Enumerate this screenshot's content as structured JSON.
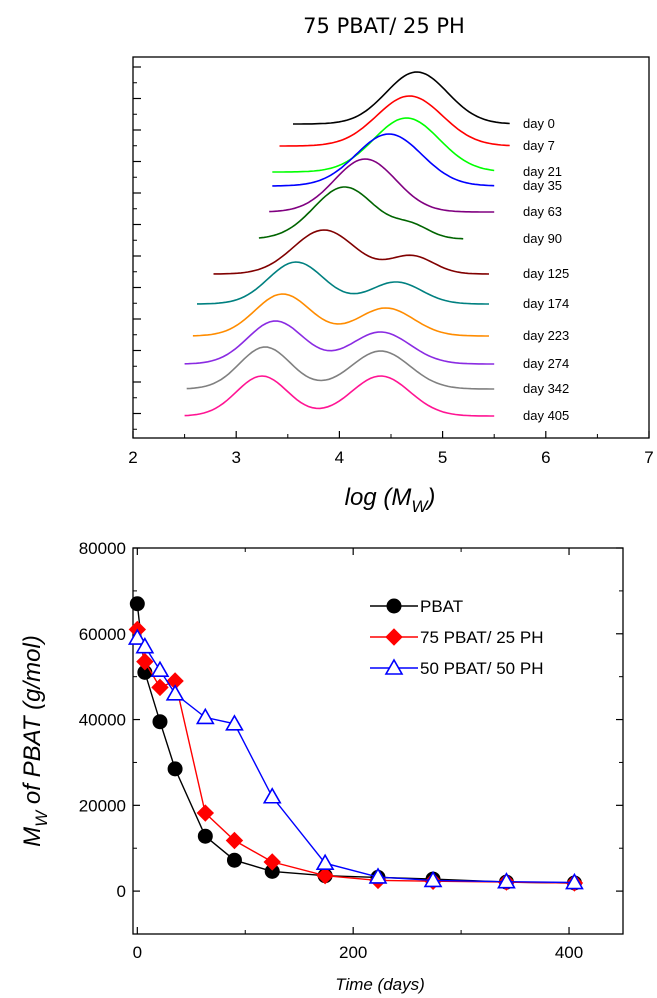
{
  "chart_data": [
    {
      "type": "line",
      "title": "75 PBAT/ 25 PH",
      "xlabel": "log (MW)",
      "xlabel_main": "log (M",
      "xlabel_sub": "W",
      "xlabel_close": ")",
      "ylabel": "",
      "xlim": [
        2,
        7
      ],
      "x_ticks": [
        2,
        3,
        4,
        5,
        6,
        7
      ],
      "y_ticks_shown": false,
      "grid": false,
      "series": [
        {
          "name": "day 0",
          "color": "#000000",
          "start": 3.55,
          "end": 5.65,
          "offset": 0,
          "peaks": [
            {
              "x": 4.75,
              "h": 52,
              "w": 0.42
            }
          ],
          "x": [
            3.55,
            4.75,
            5.65
          ]
        },
        {
          "name": "day 7",
          "color": "#ff0000",
          "start": 3.42,
          "end": 5.65,
          "offset": 22,
          "peaks": [
            {
              "x": 4.68,
              "h": 50,
              "w": 0.45
            }
          ],
          "x": [
            3.42,
            4.68,
            5.65
          ]
        },
        {
          "name": "day 21",
          "color": "#00ff00",
          "start": 3.35,
          "end": 5.5,
          "offset": 48,
          "peaks": [
            {
              "x": 4.65,
              "h": 54,
              "w": 0.45
            }
          ],
          "x": [
            3.35,
            4.65,
            5.5
          ]
        },
        {
          "name": "day 35",
          "color": "#0000ff",
          "start": 3.35,
          "end": 5.5,
          "offset": 62,
          "peaks": [
            {
              "x": 4.48,
              "h": 52,
              "w": 0.45
            }
          ],
          "x": [
            3.35,
            4.48,
            5.5
          ]
        },
        {
          "name": "day 63",
          "color": "#800080",
          "start": 3.32,
          "end": 5.5,
          "offset": 88,
          "peaks": [
            {
              "x": 4.25,
              "h": 53,
              "w": 0.42
            }
          ],
          "x": [
            3.32,
            4.25,
            5.5
          ]
        },
        {
          "name": "day 90",
          "color": "#006400",
          "start": 3.22,
          "end": 5.2,
          "offset": 115,
          "peaks": [
            {
              "x": 4.05,
              "h": 52,
              "w": 0.42
            },
            {
              "x": 4.7,
              "h": 12,
              "w": 0.25
            }
          ],
          "x": [
            3.22,
            4.05,
            5.2
          ]
        },
        {
          "name": "day 125",
          "color": "#800000",
          "start": 2.78,
          "end": 5.45,
          "offset": 150,
          "peaks": [
            {
              "x": 3.85,
              "h": 44,
              "w": 0.42
            },
            {
              "x": 4.7,
              "h": 18,
              "w": 0.3
            }
          ],
          "x": [
            2.78,
            3.85,
            5.45
          ]
        },
        {
          "name": "day 174",
          "color": "#008080",
          "start": 2.62,
          "end": 5.45,
          "offset": 180,
          "peaks": [
            {
              "x": 3.58,
              "h": 42,
              "w": 0.38
            },
            {
              "x": 4.55,
              "h": 22,
              "w": 0.35
            }
          ],
          "x": [
            2.62,
            3.58,
            5.45
          ]
        },
        {
          "name": "day 223",
          "color": "#ff8c00",
          "start": 2.58,
          "end": 5.45,
          "offset": 212,
          "peaks": [
            {
              "x": 3.45,
              "h": 42,
              "w": 0.38
            },
            {
              "x": 4.45,
              "h": 28,
              "w": 0.38
            }
          ],
          "x": [
            2.58,
            3.45,
            5.45
          ]
        },
        {
          "name": "day 274",
          "color": "#8a2be2",
          "start": 2.5,
          "end": 5.5,
          "offset": 240,
          "peaks": [
            {
              "x": 3.38,
              "h": 43,
              "w": 0.38
            },
            {
              "x": 4.4,
              "h": 32,
              "w": 0.4
            }
          ],
          "x": [
            2.5,
            3.38,
            5.5
          ]
        },
        {
          "name": "day 342",
          "color": "#808080",
          "start": 2.52,
          "end": 5.5,
          "offset": 265,
          "peaks": [
            {
              "x": 3.28,
              "h": 42,
              "w": 0.35
            },
            {
              "x": 4.4,
              "h": 38,
              "w": 0.4
            }
          ],
          "x": [
            2.52,
            3.28,
            5.5
          ]
        },
        {
          "name": "day 405",
          "color": "#ff1493",
          "start": 2.5,
          "end": 5.5,
          "offset": 292,
          "peaks": [
            {
              "x": 3.25,
              "h": 40,
              "w": 0.35
            },
            {
              "x": 4.4,
              "h": 40,
              "w": 0.4
            }
          ],
          "x": [
            2.5,
            3.25,
            5.5
          ]
        }
      ]
    },
    {
      "type": "line",
      "title": "",
      "xlabel": "Time (days)",
      "ylabel": "MW of PBAT (g/mol)",
      "ylabel_main": "M",
      "ylabel_sub": "W",
      "ylabel_rest": " of PBAT (g/mol)",
      "xlim": [
        -4,
        450
      ],
      "ylim": [
        -10000,
        80000
      ],
      "x_ticks": [
        0,
        200,
        400
      ],
      "y_ticks": [
        0,
        20000,
        40000,
        60000,
        80000
      ],
      "grid": false,
      "legend_position": "top-right",
      "series": [
        {
          "name": "PBAT",
          "color": "#000000",
          "marker": "circle",
          "x": [
            0,
            7,
            21,
            35,
            63,
            90,
            125,
            174,
            223,
            274,
            342,
            405
          ],
          "y": [
            67000,
            51000,
            39500,
            28500,
            12800,
            7200,
            4600,
            3600,
            3200,
            2800,
            2100,
            1900
          ]
        },
        {
          "name": "75 PBAT/ 25 PH",
          "color": "#ff0000",
          "marker": "diamond",
          "x": [
            0,
            7,
            21,
            35,
            63,
            90,
            125,
            174,
            223,
            274,
            342,
            405
          ],
          "y": [
            61000,
            53500,
            47500,
            49000,
            18200,
            11800,
            6800,
            3600,
            2500,
            2300,
            2100,
            1900
          ]
        },
        {
          "name": "50 PBAT/ 50 PH",
          "color": "#0000ff",
          "marker": "triangle",
          "x": [
            0,
            7,
            21,
            35,
            63,
            90,
            125,
            174,
            223,
            274,
            342,
            405
          ],
          "y": [
            59000,
            57000,
            51500,
            46000,
            40500,
            39000,
            22000,
            6500,
            3300,
            2500,
            2200,
            2000
          ]
        }
      ]
    }
  ]
}
